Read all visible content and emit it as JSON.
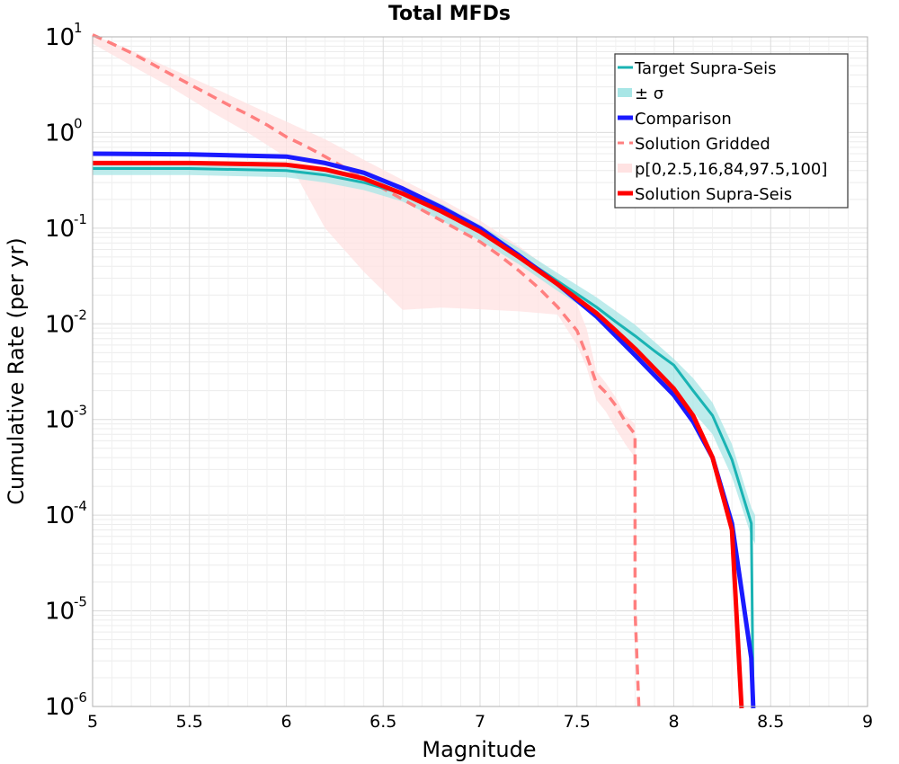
{
  "chart_data": {
    "type": "line",
    "title": "Total MFDs",
    "xlabel": "Magnitude",
    "ylabel": "Cumulative Rate (per yr)",
    "xlim": [
      5,
      9
    ],
    "ylim": [
      1e-06,
      10
    ],
    "yscale": "log",
    "grid": true,
    "legend_position": "top-right",
    "x_ticks": [
      "5",
      "5.5",
      "6",
      "6.5",
      "7",
      "7.5",
      "8",
      "8.5",
      "9"
    ],
    "y_ticks": [
      {
        "base": "10",
        "exp": "1"
      },
      {
        "base": "10",
        "exp": "0"
      },
      {
        "base": "10",
        "exp": "-1"
      },
      {
        "base": "10",
        "exp": "-2"
      },
      {
        "base": "10",
        "exp": "-3"
      },
      {
        "base": "10",
        "exp": "-4"
      },
      {
        "base": "10",
        "exp": "-5"
      },
      {
        "base": "10",
        "exp": "-6"
      }
    ],
    "bands": [
      {
        "name": "p[0,2.5,16,84,97.5,100]",
        "color": "#ffe2e2",
        "opacity": 0.75,
        "x": [
          5.0,
          5.2,
          5.4,
          5.6,
          5.8,
          6.0,
          6.2,
          6.4,
          6.6,
          6.8,
          7.0,
          7.2,
          7.4,
          7.5,
          7.55,
          7.6,
          7.65,
          7.7,
          7.75,
          7.8
        ],
        "upper": [
          10.5,
          7.2,
          4.7,
          3.1,
          2.0,
          1.3,
          0.85,
          0.52,
          0.32,
          0.2,
          0.12,
          0.065,
          0.032,
          0.016,
          0.009,
          0.0032,
          0.0024,
          0.0017,
          0.0011,
          0.0009
        ],
        "lower": [
          8.5,
          5.0,
          3.0,
          1.7,
          1.0,
          0.55,
          0.1,
          0.035,
          0.014,
          0.0148,
          0.0142,
          0.0135,
          0.0125,
          0.006,
          0.0035,
          0.0016,
          0.0012,
          0.0008,
          0.00055,
          0.0004
        ]
      },
      {
        "name": "± σ",
        "color": "#a8e6e6",
        "opacity": 0.75,
        "x": [
          5.0,
          5.5,
          6.0,
          6.2,
          6.4,
          6.6,
          6.8,
          7.0,
          7.2,
          7.4,
          7.6,
          7.8,
          7.9,
          8.0,
          8.1,
          8.2,
          8.3,
          8.4,
          8.42
        ],
        "upper": [
          0.5,
          0.5,
          0.48,
          0.43,
          0.36,
          0.27,
          0.18,
          0.108,
          0.062,
          0.034,
          0.019,
          0.0098,
          0.0065,
          0.0043,
          0.0027,
          0.0015,
          0.00055,
          0.00012,
          0.0001
        ],
        "lower": [
          0.36,
          0.36,
          0.34,
          0.3,
          0.25,
          0.19,
          0.12,
          0.074,
          0.042,
          0.022,
          0.012,
          0.0058,
          0.0036,
          0.0022,
          0.0012,
          0.0007,
          0.00025,
          6e-05,
          5e-05
        ]
      }
    ],
    "series": [
      {
        "name": "Solution Gridded",
        "color": "#ff7f7f",
        "width": 3.5,
        "dash": "11,7",
        "x": [
          5.0,
          5.1,
          5.2,
          5.3,
          5.4,
          5.5,
          5.6,
          5.7,
          5.8,
          5.9,
          6.0,
          6.1,
          6.2,
          6.3,
          6.4,
          6.5,
          6.6,
          6.7,
          6.8,
          6.9,
          7.0,
          7.1,
          7.2,
          7.3,
          7.4,
          7.5,
          7.55,
          7.6,
          7.65,
          7.7,
          7.75,
          7.8,
          7.8,
          7.82
        ],
        "y": [
          10.5,
          8.5,
          6.8,
          5.3,
          4.1,
          3.2,
          2.5,
          1.95,
          1.55,
          1.2,
          0.9,
          0.72,
          0.56,
          0.43,
          0.33,
          0.26,
          0.2,
          0.155,
          0.12,
          0.093,
          0.072,
          0.052,
          0.036,
          0.024,
          0.015,
          0.0085,
          0.0047,
          0.0024,
          0.0019,
          0.0014,
          0.00095,
          0.0007,
          1e-05,
          9e-07
        ]
      },
      {
        "name": "Target Supra-Seis",
        "color": "#1ab3b3",
        "width": 3,
        "dash": "",
        "x": [
          5.0,
          5.5,
          6.0,
          6.2,
          6.4,
          6.6,
          6.8,
          7.0,
          7.2,
          7.4,
          7.6,
          7.7,
          7.8,
          7.9,
          8.0,
          8.1,
          8.2,
          8.3,
          8.4,
          8.41
        ],
        "y": [
          0.42,
          0.42,
          0.4,
          0.36,
          0.3,
          0.23,
          0.15,
          0.09,
          0.052,
          0.028,
          0.015,
          0.0105,
          0.0075,
          0.0052,
          0.0037,
          0.002,
          0.0011,
          0.00038,
          8.2e-05,
          9e-07
        ]
      },
      {
        "name": "Comparison",
        "color": "#1a1aff",
        "width": 5,
        "dash": "",
        "x": [
          5.0,
          5.5,
          6.0,
          6.2,
          6.4,
          6.6,
          6.8,
          7.0,
          7.2,
          7.4,
          7.6,
          7.7,
          7.8,
          7.9,
          8.0,
          8.1,
          8.2,
          8.3,
          8.4,
          8.41
        ],
        "y": [
          0.6,
          0.59,
          0.56,
          0.48,
          0.38,
          0.26,
          0.165,
          0.1,
          0.052,
          0.026,
          0.012,
          0.0075,
          0.0047,
          0.0029,
          0.0018,
          0.00095,
          0.0004,
          8.2e-05,
          3.2e-06,
          9e-07
        ]
      },
      {
        "name": "Solution Supra-Seis",
        "color": "#ff0000",
        "width": 5,
        "dash": "",
        "x": [
          5.0,
          5.5,
          6.0,
          6.2,
          6.4,
          6.6,
          6.8,
          7.0,
          7.2,
          7.4,
          7.6,
          7.7,
          7.8,
          7.9,
          8.0,
          8.1,
          8.2,
          8.3,
          8.35
        ],
        "y": [
          0.48,
          0.48,
          0.46,
          0.41,
          0.33,
          0.23,
          0.15,
          0.092,
          0.05,
          0.026,
          0.013,
          0.0085,
          0.0055,
          0.0034,
          0.0021,
          0.0011,
          0.0004,
          7e-05,
          9e-07
        ]
      }
    ],
    "legend": [
      {
        "label": "Target Supra-Seis",
        "kind": "line",
        "color": "#1ab3b3",
        "width": 3,
        "dash": ""
      },
      {
        "label": "± σ",
        "kind": "band",
        "color": "#a8e6e6",
        "width": 8,
        "dash": ""
      },
      {
        "label": "Comparison",
        "kind": "line",
        "color": "#1a1aff",
        "width": 5,
        "dash": ""
      },
      {
        "label": "Solution Gridded",
        "kind": "line",
        "color": "#ff7f7f",
        "width": 3,
        "dash": "7,6"
      },
      {
        "label": "p[0,2.5,16,84,97.5,100]",
        "kind": "band",
        "color": "#ffe2e2",
        "width": 8,
        "dash": ""
      },
      {
        "label": "Solution Supra-Seis",
        "kind": "line",
        "color": "#ff0000",
        "width": 5,
        "dash": ""
      }
    ]
  }
}
